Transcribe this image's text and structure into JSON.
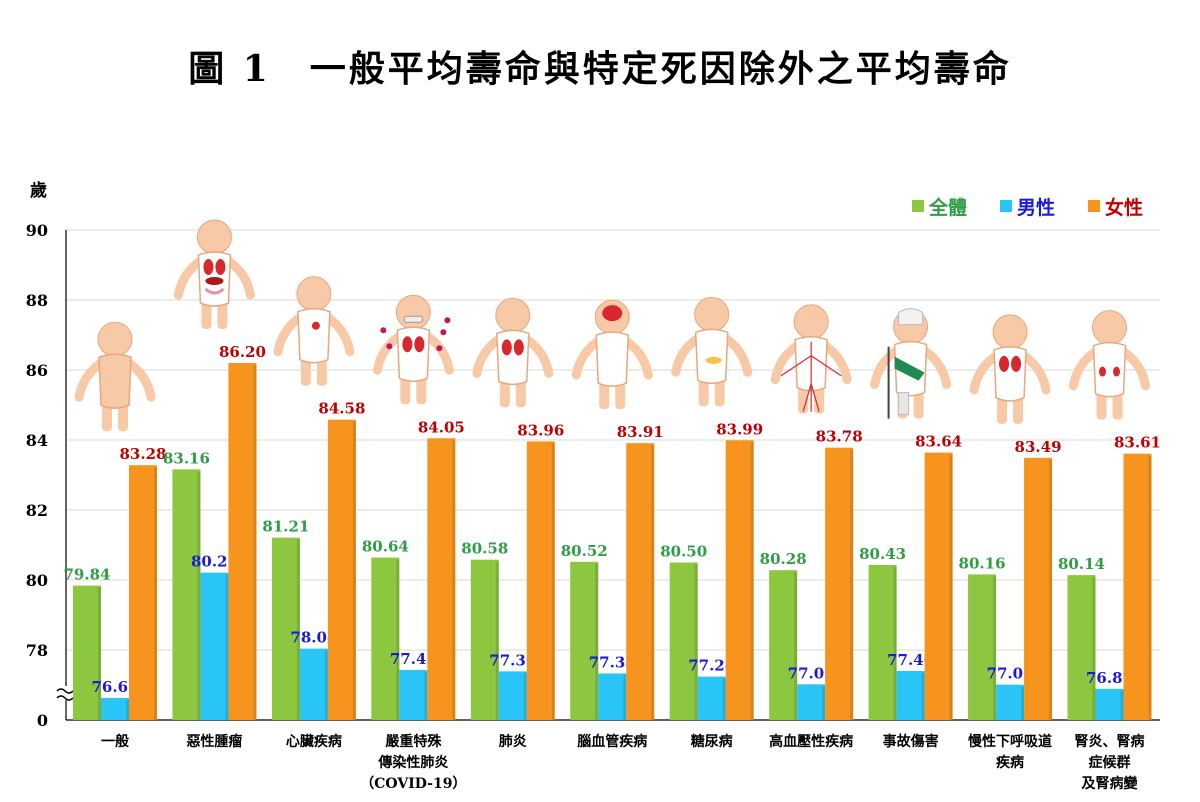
{
  "title": "圖 1　一般平均壽命與特定死因除外之平均壽命",
  "chart_data": {
    "type": "bar",
    "ylabel": "歲",
    "ylim": [
      76.0,
      90.0
    ],
    "yticks": [
      "0",
      "78",
      "80",
      "82",
      "84",
      "86",
      "88",
      "90"
    ],
    "axis_break": true,
    "legend_position": "top-right",
    "grid": true,
    "categories": [
      [
        "一般"
      ],
      [
        "惡性腫瘤"
      ],
      [
        "心臟疾病"
      ],
      [
        "嚴重特殊",
        "傳染性肺炎",
        "（COVID-19）"
      ],
      [
        "肺炎"
      ],
      [
        "腦血管疾病"
      ],
      [
        "糖尿病"
      ],
      [
        "高血壓性疾病"
      ],
      [
        "事故傷害"
      ],
      [
        "慢性下呼吸道",
        "疾病"
      ],
      [
        "腎炎、腎病",
        "症候群",
        "及腎病變"
      ]
    ],
    "series": [
      {
        "name": "全體",
        "color": "#8dc63f",
        "label_color": "#2e9e44",
        "values": [
          79.84,
          83.16,
          81.21,
          80.64,
          80.58,
          80.52,
          80.5,
          80.28,
          80.43,
          80.16,
          80.14
        ]
      },
      {
        "name": "男性",
        "color": "#29c5f6",
        "label_color": "#1a1adb",
        "values": [
          76.63,
          80.21,
          78.04,
          77.43,
          77.39,
          77.33,
          77.24,
          77.02,
          77.4,
          77.01,
          76.89
        ]
      },
      {
        "name": "女性",
        "color": "#f7941d",
        "label_color": "#c00000",
        "values": [
          83.28,
          86.2,
          84.58,
          84.05,
          83.96,
          83.91,
          83.99,
          83.78,
          83.64,
          83.49,
          83.61
        ]
      }
    ],
    "figure_icons": [
      "body-figure-icon",
      "body-tumor-organs-icon",
      "body-heart-icon",
      "body-covid-lungs-icon",
      "body-lungs-icon",
      "body-brain-icon",
      "body-pancreas-icon",
      "body-blood-vessels-icon",
      "body-injury-cast-icon",
      "body-airway-lungs-icon",
      "body-kidneys-icon"
    ]
  }
}
